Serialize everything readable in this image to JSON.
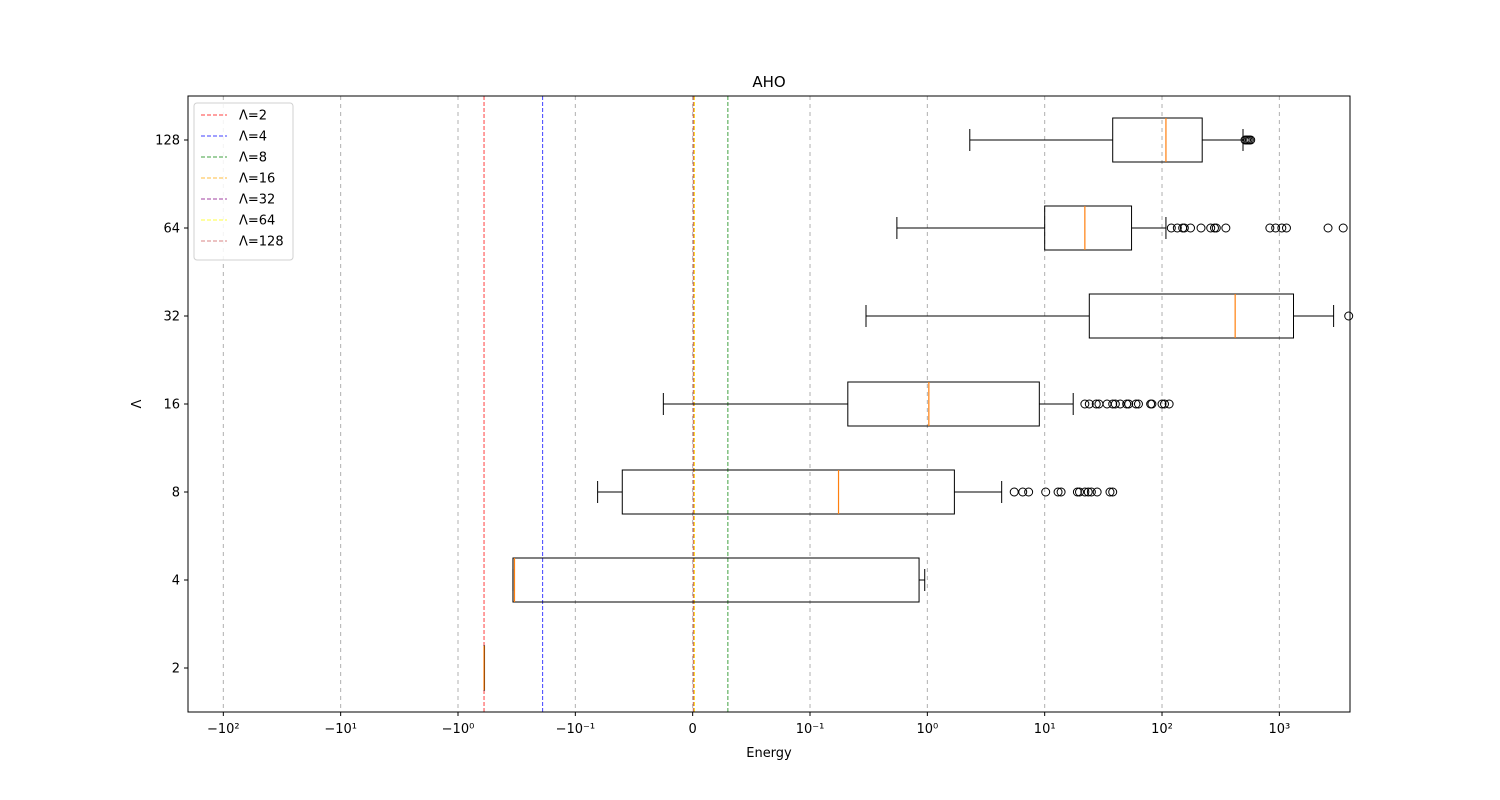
{
  "chart_data": {
    "type": "boxplot",
    "orientation": "horizontal",
    "title": "AHO",
    "xlabel": "Energy",
    "ylabel": "Λ",
    "xscale": "symlog",
    "xscale_linthresh": 0.1,
    "xlim": [
      -200,
      4000
    ],
    "grid": {
      "x": true,
      "y": false,
      "style": "dashed"
    },
    "x_ticks": [
      {
        "value": -100,
        "label": "−10²"
      },
      {
        "value": -10,
        "label": "−10¹"
      },
      {
        "value": -1,
        "label": "−10⁰"
      },
      {
        "value": -0.1,
        "label": "−10⁻¹"
      },
      {
        "value": 0,
        "label": "0"
      },
      {
        "value": 0.1,
        "label": "10⁻¹"
      },
      {
        "value": 1,
        "label": "10⁰"
      },
      {
        "value": 10,
        "label": "10¹"
      },
      {
        "value": 100,
        "label": "10²"
      },
      {
        "value": 1000,
        "label": "10³"
      }
    ],
    "categories": [
      "2",
      "4",
      "8",
      "16",
      "32",
      "64",
      "128"
    ],
    "boxes": [
      {
        "label": "2",
        "whislo": -0.6,
        "q1": -0.6,
        "med": -0.6,
        "q3": -0.6,
        "whishi": -0.6,
        "fliers": []
      },
      {
        "label": "4",
        "whislo": -0.34,
        "q1": -0.34,
        "med": -0.33,
        "q3": 0.85,
        "whishi": 0.95,
        "fliers": []
      },
      {
        "label": "8",
        "whislo": -0.081,
        "q1": -0.06,
        "med": 0.175,
        "q3": 1.7,
        "whishi": 4.3,
        "fliers": [
          5.5,
          6.5,
          7.3,
          10.2,
          13.0,
          13.8,
          19.0,
          19.8,
          22.0,
          23.5,
          25.0,
          28.0,
          36.0,
          38.0
        ]
      },
      {
        "label": "16",
        "whislo": -0.025,
        "q1": 0.21,
        "med": 1.03,
        "q3": 9.0,
        "whishi": 17.5,
        "fliers": [
          22.0,
          24.0,
          27.5,
          29.0,
          34.0,
          38.0,
          40.0,
          44.0,
          50.0,
          52.0,
          60.0,
          63.0,
          80.0,
          82.0,
          100.0,
          105.0,
          115.0
        ]
      },
      {
        "label": "32",
        "whislo": 0.3,
        "q1": 24.0,
        "med": 420.0,
        "q3": 1320.0,
        "whishi": 2900.0,
        "fliers": [
          3900.0
        ]
      },
      {
        "label": "64",
        "whislo": 0.55,
        "q1": 10.0,
        "med": 22.0,
        "q3": 55.0,
        "whishi": 108.0,
        "fliers": [
          120.0,
          135.0,
          150.0,
          155.0,
          175.0,
          215.0,
          260.0,
          280.0,
          290.0,
          350.0,
          830.0,
          930.0,
          1050.0,
          1150.0,
          2600.0,
          3500.0
        ]
      },
      {
        "label": "128",
        "whislo": 2.3,
        "q1": 38.0,
        "med": 108.0,
        "q3": 220.0,
        "whishi": 490.0,
        "fliers": [
          510.0,
          525.0,
          540.0,
          555.0,
          570.0
        ]
      }
    ],
    "vlines": [
      {
        "name": "Λ=2",
        "x": -0.6,
        "color": "#ff0000"
      },
      {
        "name": "Λ=4",
        "x": -0.19,
        "color": "#0000ff"
      },
      {
        "name": "Λ=8",
        "x": 0.03,
        "color": "#008000"
      },
      {
        "name": "Λ=16",
        "x": 0.0015,
        "color": "#ffa500"
      },
      {
        "name": "Λ=32",
        "x": 0.0008,
        "color": "#800080"
      },
      {
        "name": "Λ=64",
        "x": 0.0012,
        "color": "#ffff00"
      },
      {
        "name": "Λ=128",
        "x": 0.0005,
        "color": "#cd5c5c"
      }
    ],
    "legend": {
      "placement": "upper-left"
    },
    "colors": {
      "box": "#000000",
      "median": "#ff7f0e",
      "grid": "#b0b0b0"
    }
  }
}
